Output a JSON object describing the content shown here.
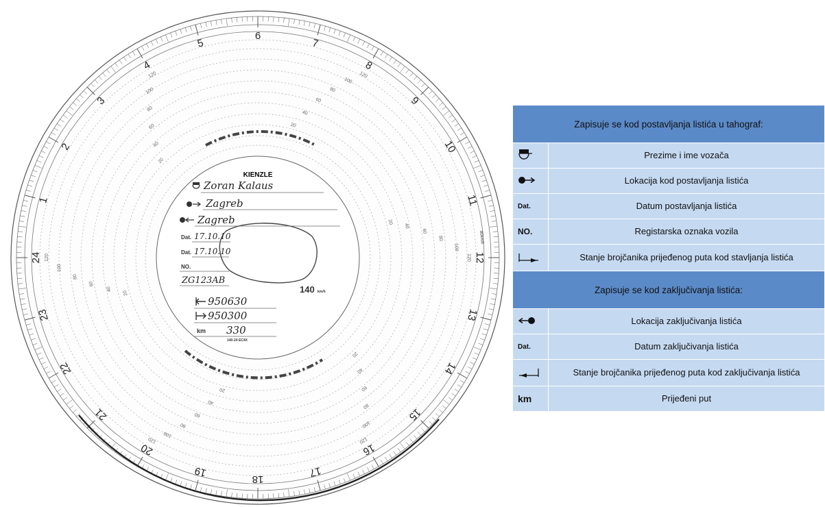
{
  "disc": {
    "brand": "KIENZLE",
    "speed_max": "140",
    "speed_unit": "km/h",
    "form_code": "140-24 EC4X",
    "vehicle_direction": "80km/h",
    "driver_name": "Zoran Kalaus",
    "location_start": "Zagreb",
    "location_end": "Zagreb",
    "date_label": "Dat.",
    "date_start": "17.10.10",
    "date_end": "17.10.10",
    "reg_label": "NO.",
    "registration": "ZG123AB",
    "odometer_end": "950630",
    "odometer_start": "950300",
    "km_label": "km",
    "km_value": "330",
    "hour_labels": [
      "24",
      "1",
      "2",
      "3",
      "4",
      "5",
      "6",
      "7",
      "8",
      "9",
      "10",
      "11",
      "12",
      "13",
      "14",
      "15",
      "16",
      "17",
      "18",
      "19",
      "20",
      "21",
      "22",
      "23"
    ],
    "speed_ring_labels": [
      "20",
      "40",
      "60",
      "80",
      "100",
      "120"
    ]
  },
  "legend": {
    "header_start": "Zapisuje se kod postavljanja listića u tahograf:",
    "header_end": "Zapisuje se kod zaključivanja listića:",
    "rows_start": [
      {
        "symbol": "driver-icon",
        "label": "Prezime i ime vozača"
      },
      {
        "symbol": "location-start-icon",
        "label": "Lokacija kod postavljanja listića"
      },
      {
        "symbol_text": "Dat.",
        "label": "Datum postavljanja listića"
      },
      {
        "symbol_text": "NO.",
        "label": "Registarska oznaka vozila"
      },
      {
        "symbol": "odometer-start-icon",
        "label": "Stanje brojčanika prijeđenog puta kod stavljanja listića"
      }
    ],
    "rows_end": [
      {
        "symbol": "location-end-icon",
        "label": "Lokacija zaključivanja listića"
      },
      {
        "symbol_text": "Dat.",
        "label": "Datum zaključivanja listića"
      },
      {
        "symbol": "odometer-end-icon",
        "label": "Stanje brojčanika prijeđenog puta kod zaključivanja listića"
      },
      {
        "symbol_text": "km",
        "label": "Prijeđeni put"
      }
    ]
  }
}
